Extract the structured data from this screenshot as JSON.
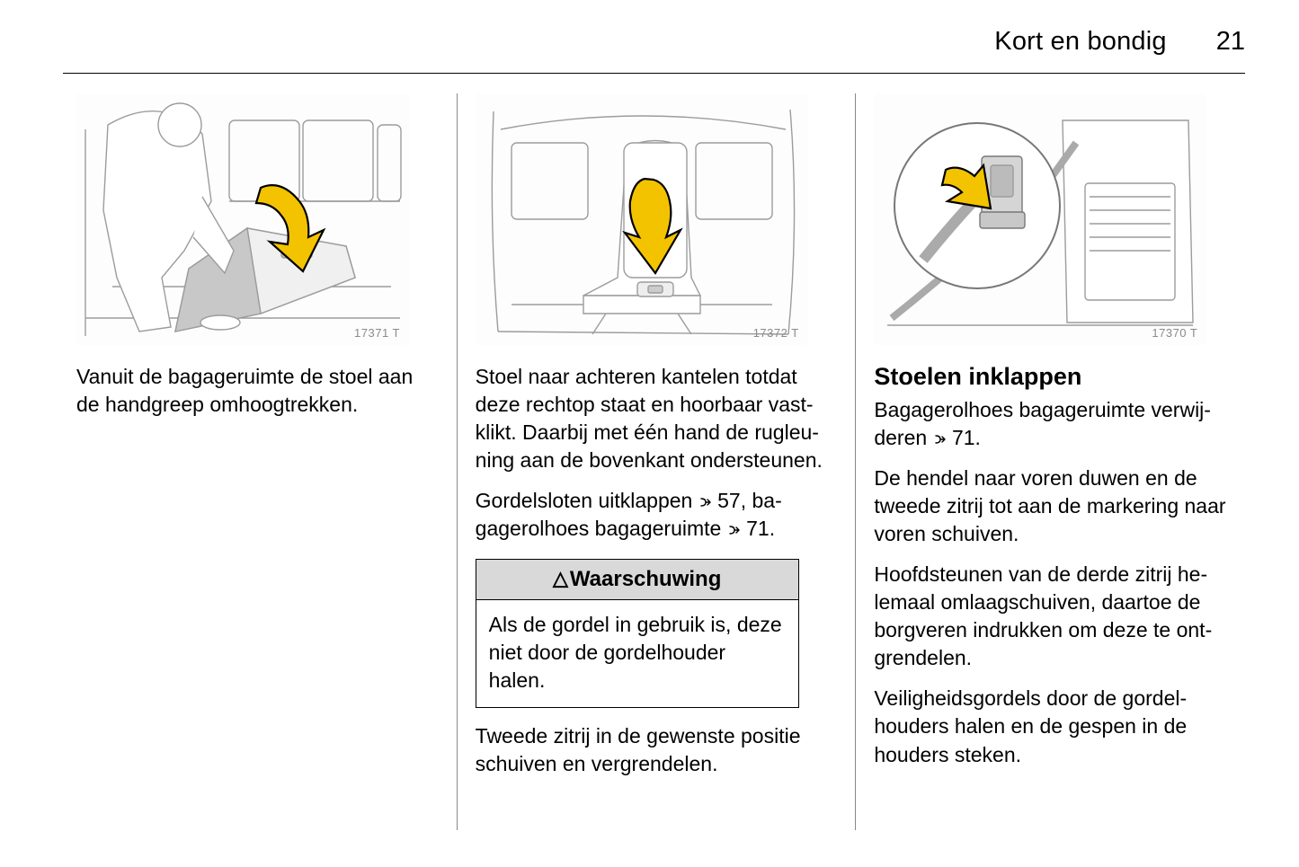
{
  "header": {
    "section": "Kort en bondig",
    "page_number": "21"
  },
  "column1": {
    "illustration_id": "17371 T",
    "illustration_alt": "Persoon trekt stoel omhoog vanuit bagageruimte",
    "text1": "Vanuit de bagageruimte de stoel aan de handgreep omhoogtrekken.",
    "arrow_color": "#f3c300",
    "arrow_stroke": "#000000",
    "line_stroke": "#9c9c9c"
  },
  "column2": {
    "illustration_id": "17372 T",
    "illustration_alt": "Stoel naar achteren kantelen",
    "text1": "Stoel naar achteren kantelen totdat deze rechtop staat en hoorbaar vast­klikt. Daarbij met één hand de rugleu­ning aan de bovenkant ondersteu­nen.",
    "text2_pre": "Gordelsloten uitklappen ",
    "ref1": "57",
    "text2_mid": ", ba­gagerolhoes bagageruimte ",
    "ref2": "71",
    "text2_post": ".",
    "warning_label": "Waarschuwing",
    "warning_body": "Als de gordel in gebruik is, deze niet door de gordelhouder halen.",
    "text3": "Tweede zitrij in de gewenste positie schuiven en vergrendelen.",
    "arrow_color": "#f3c300",
    "arrow_stroke": "#000000",
    "line_stroke": "#9c9c9c"
  },
  "column3": {
    "illustration_id": "17370 T",
    "illustration_alt": "Gordels door gordelhouders halen",
    "heading": "Stoelen inklappen",
    "text1_pre": "Bagagerolhoes bagageruimte verwij­deren ",
    "ref1": "71",
    "text1_post": ".",
    "text2": "De hendel naar voren duwen en de tweede zitrij tot aan de markering naar voren schuiven.",
    "text3": "Hoofdsteunen van de derde zitrij he­lemaal omlaagschuiven, daartoe de borgveren indrukken om deze te ont­grendelen.",
    "text4": "Veiligheidsgordels door de gordel­houders halen en de gespen in de houders steken.",
    "arrow_color": "#f3c300",
    "arrow_stroke": "#000000",
    "line_stroke": "#9c9c9c"
  },
  "styling": {
    "body_fontsize": 23,
    "heading_fontsize": 27,
    "header_fontsize": 29,
    "warning_bg": "#d9d9d9",
    "divider_color": "#888888",
    "text_color": "#000000",
    "background": "#ffffff",
    "illus_id_color": "#8a8a8a"
  }
}
